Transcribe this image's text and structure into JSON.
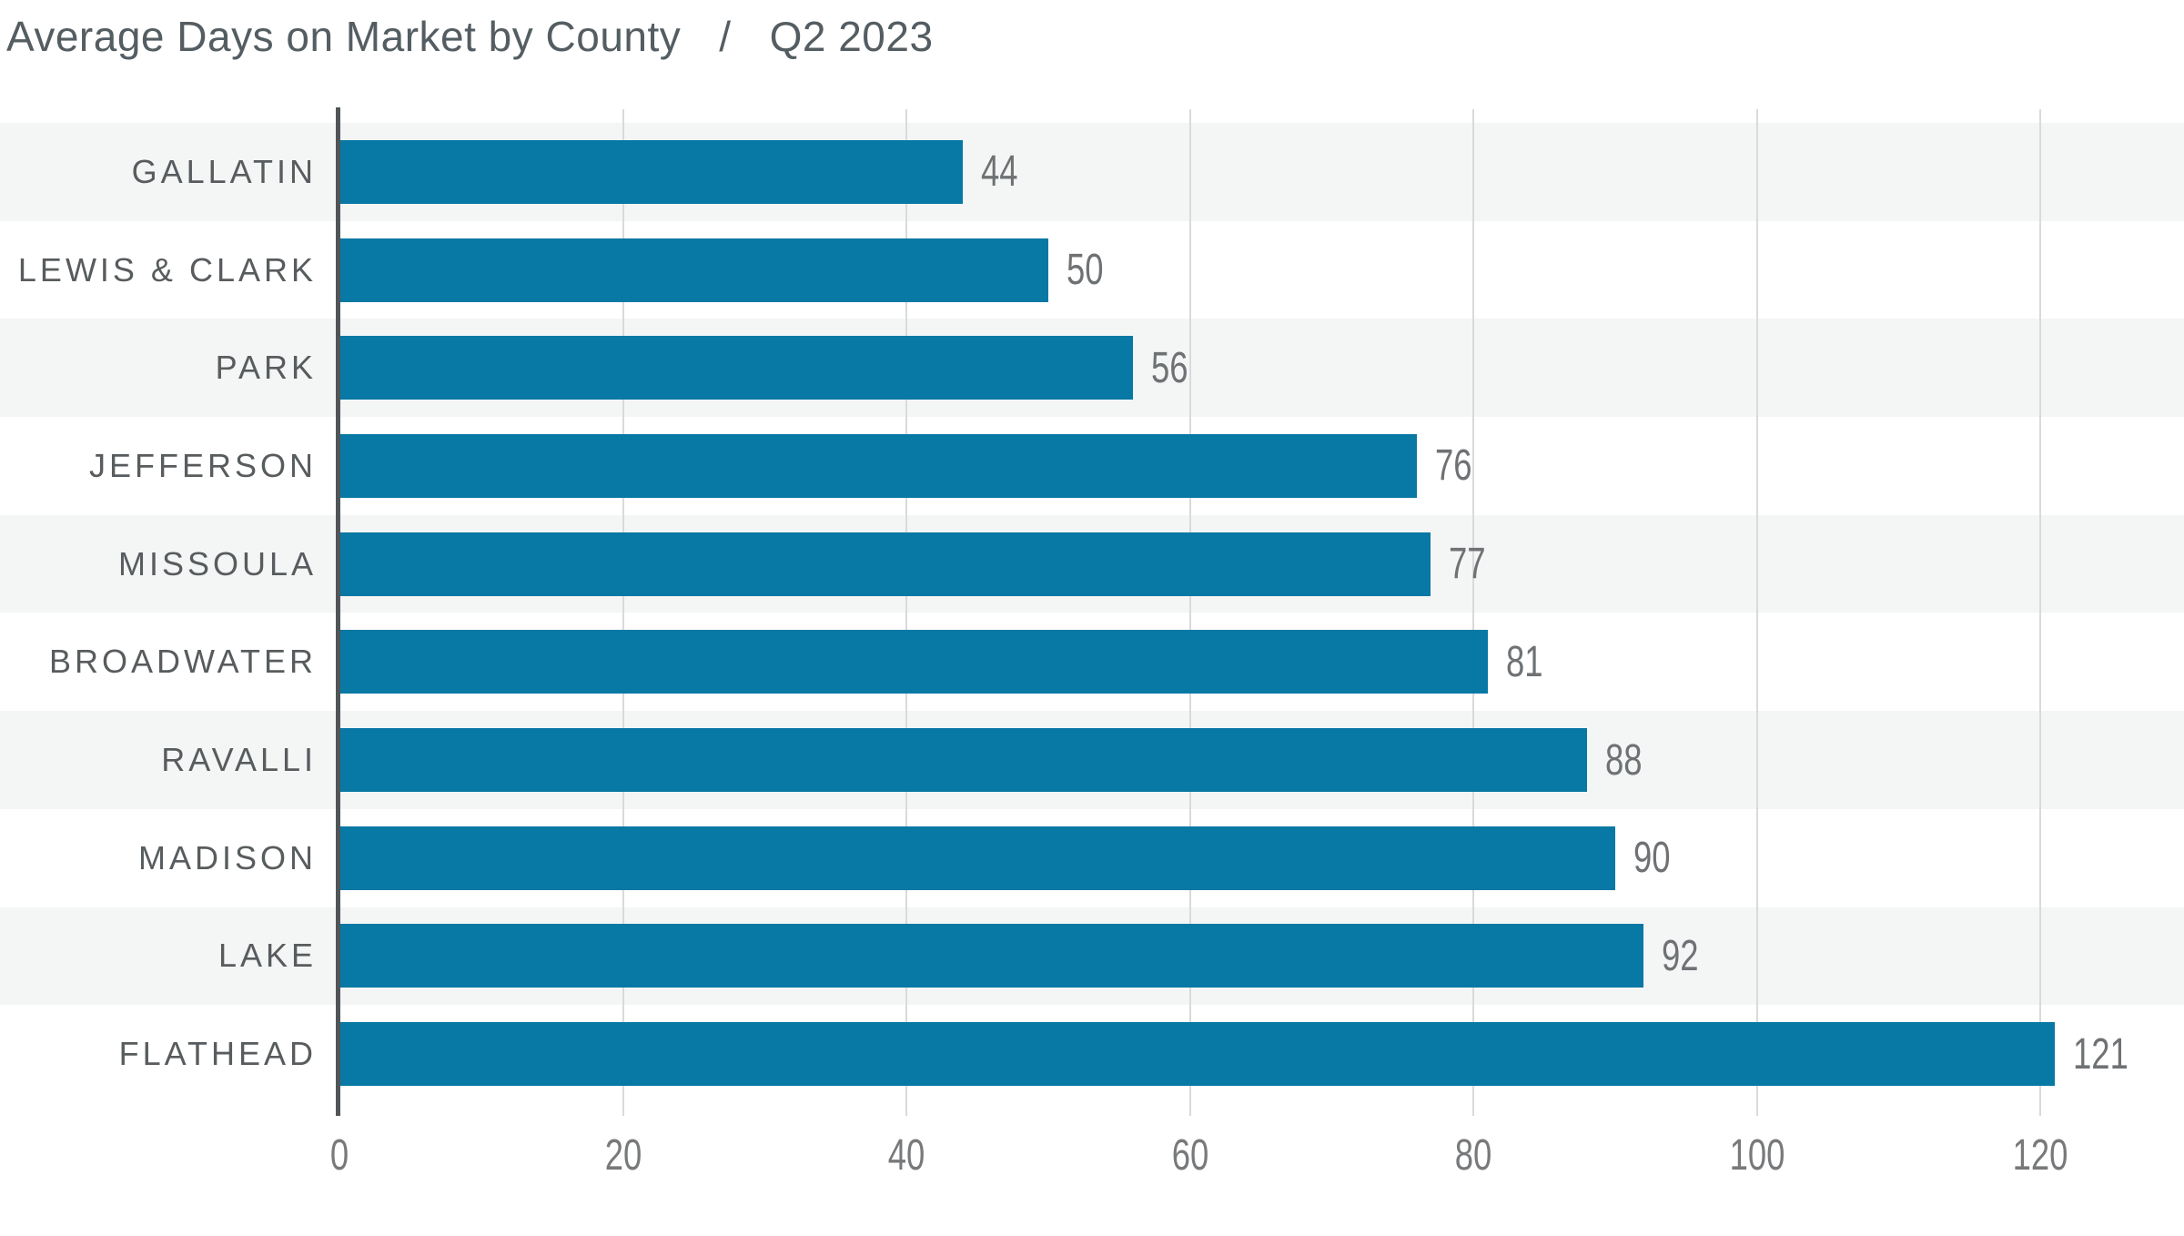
{
  "title": {
    "main": "Average Days on Market by County",
    "separator": "/",
    "period": "Q2 2023"
  },
  "chart_data": {
    "type": "bar",
    "orientation": "horizontal",
    "title": "Average Days on Market by County / Q2 2023",
    "categories": [
      "GALLATIN",
      "LEWIS & CLARK",
      "PARK",
      "JEFFERSON",
      "MISSOULA",
      "BROADWATER",
      "RAVALLI",
      "MADISON",
      "LAKE",
      "FLATHEAD"
    ],
    "values": [
      44,
      50,
      56,
      76,
      77,
      81,
      88,
      90,
      92,
      121
    ],
    "xlabel": "",
    "ylabel": "",
    "x_ticks": [
      0,
      20,
      40,
      60,
      80,
      100,
      120
    ],
    "xlim": [
      0,
      130
    ],
    "grid": "vertical",
    "legend": "none",
    "data_labels": "at-bar-end",
    "row_striping": "alternating, first row shaded",
    "bar_color": "#0878a4",
    "stripe_color": "#f4f5f5",
    "gridline_color": "#d9dadb",
    "axis_line_color": "#515558",
    "title_color": "#545d62",
    "category_label_color": "#585c5e",
    "value_label_color": "#6f7274",
    "tick_label_color": "#77797b"
  }
}
